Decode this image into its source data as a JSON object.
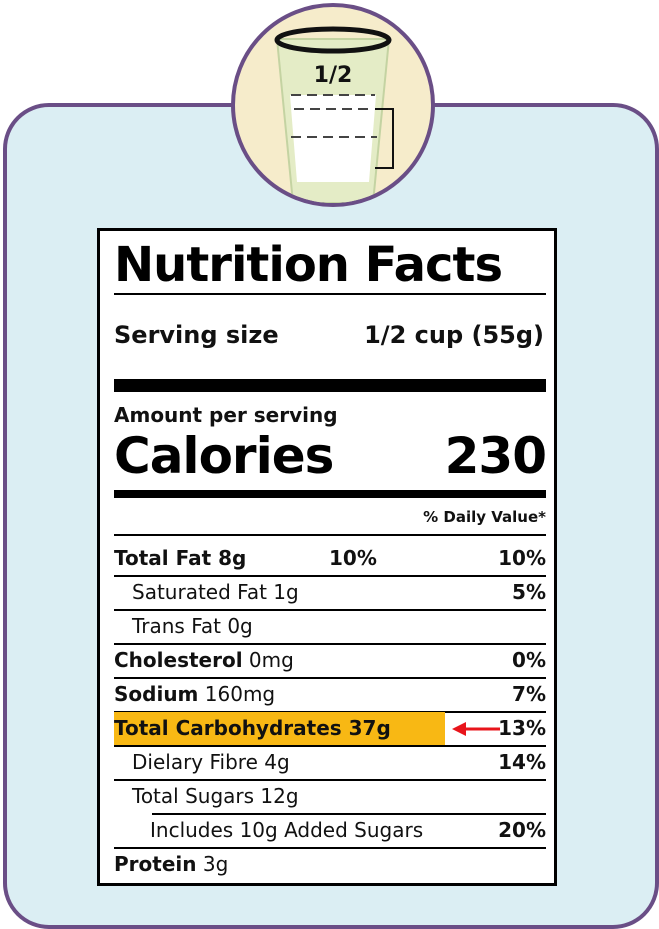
{
  "glass": {
    "fraction": "1/2"
  },
  "label": {
    "title": "Nutrition Facts",
    "serving_size_label": "Serving size",
    "serving_size_value": "1/2 cup (55g)",
    "amount_per_serving": "Amount per serving",
    "calories_label": "Calories",
    "calories_value": "230",
    "daily_value_header": "% Daily Value*",
    "rows": [
      {
        "name_bold": "Total Fat",
        "amount": " 8g",
        "mid": "10%",
        "pct": "10%"
      },
      {
        "name": "Saturated Fat 1g",
        "pct": "5%"
      },
      {
        "name": "Trans Fat 0g",
        "pct": ""
      },
      {
        "name_bold": "Cholesterol",
        "amount": " 0mg",
        "pct": "0%"
      },
      {
        "name_bold": "Sodium",
        "amount": " 160mg",
        "pct": "7%"
      },
      {
        "name_bold": "Total Carbohydrates 37g",
        "pct": "13%"
      },
      {
        "name": "Dielary Fibre 4g",
        "pct": "14%"
      },
      {
        "name": "Total Sugars 12g",
        "pct": ""
      },
      {
        "name": "Includes 10g Added Sugars",
        "pct": "20%"
      },
      {
        "name_bold": "Protein",
        "amount": " 3g",
        "pct": ""
      }
    ]
  },
  "colors": {
    "frame": "#6a4e86",
    "card_bg": "#dbeef3",
    "circle_bg": "#f6eccb",
    "highlight": "#f8b814",
    "arrow": "#e8141b"
  }
}
